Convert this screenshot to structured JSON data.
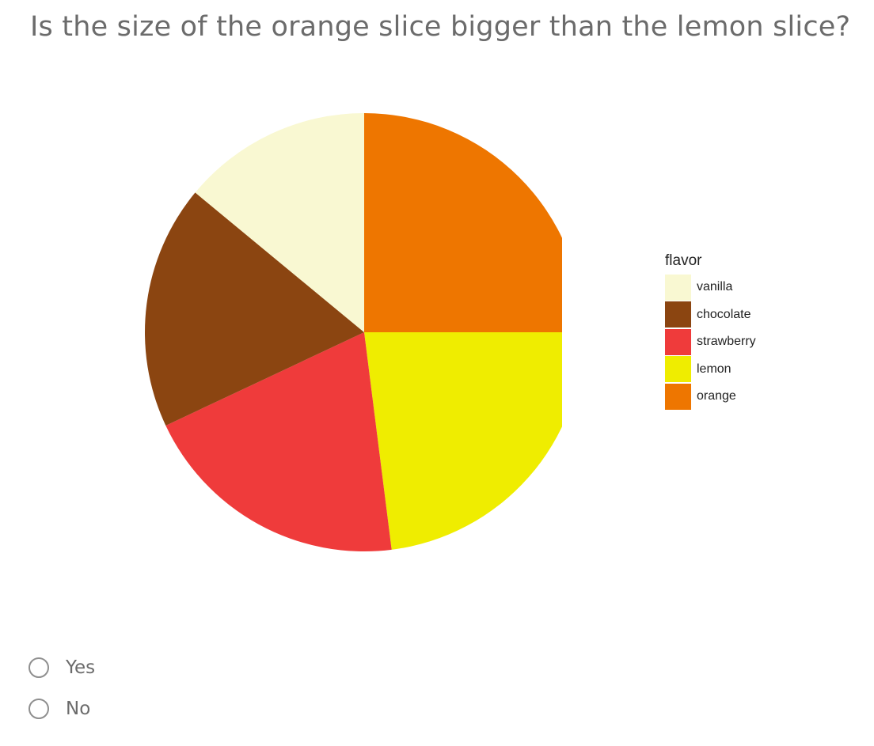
{
  "question": "Is the size of the orange slice bigger than the lemon slice?",
  "options": [
    {
      "label": "Yes"
    },
    {
      "label": "No"
    }
  ],
  "chart_data": {
    "type": "pie",
    "legend_title": "flavor",
    "legend_position": "right",
    "start_angle": "12 o'clock",
    "direction": "clockwise",
    "categories": [
      "vanilla",
      "chocolate",
      "strawberry",
      "lemon",
      "orange"
    ],
    "values": [
      14,
      18,
      20,
      23,
      25
    ],
    "colors": [
      "#f9f8d2",
      "#8b4511",
      "#ef3b3b",
      "#efed00",
      "#ee7600"
    ],
    "slice_order": [
      "orange",
      "lemon",
      "strawberry",
      "chocolate",
      "vanilla"
    ]
  }
}
